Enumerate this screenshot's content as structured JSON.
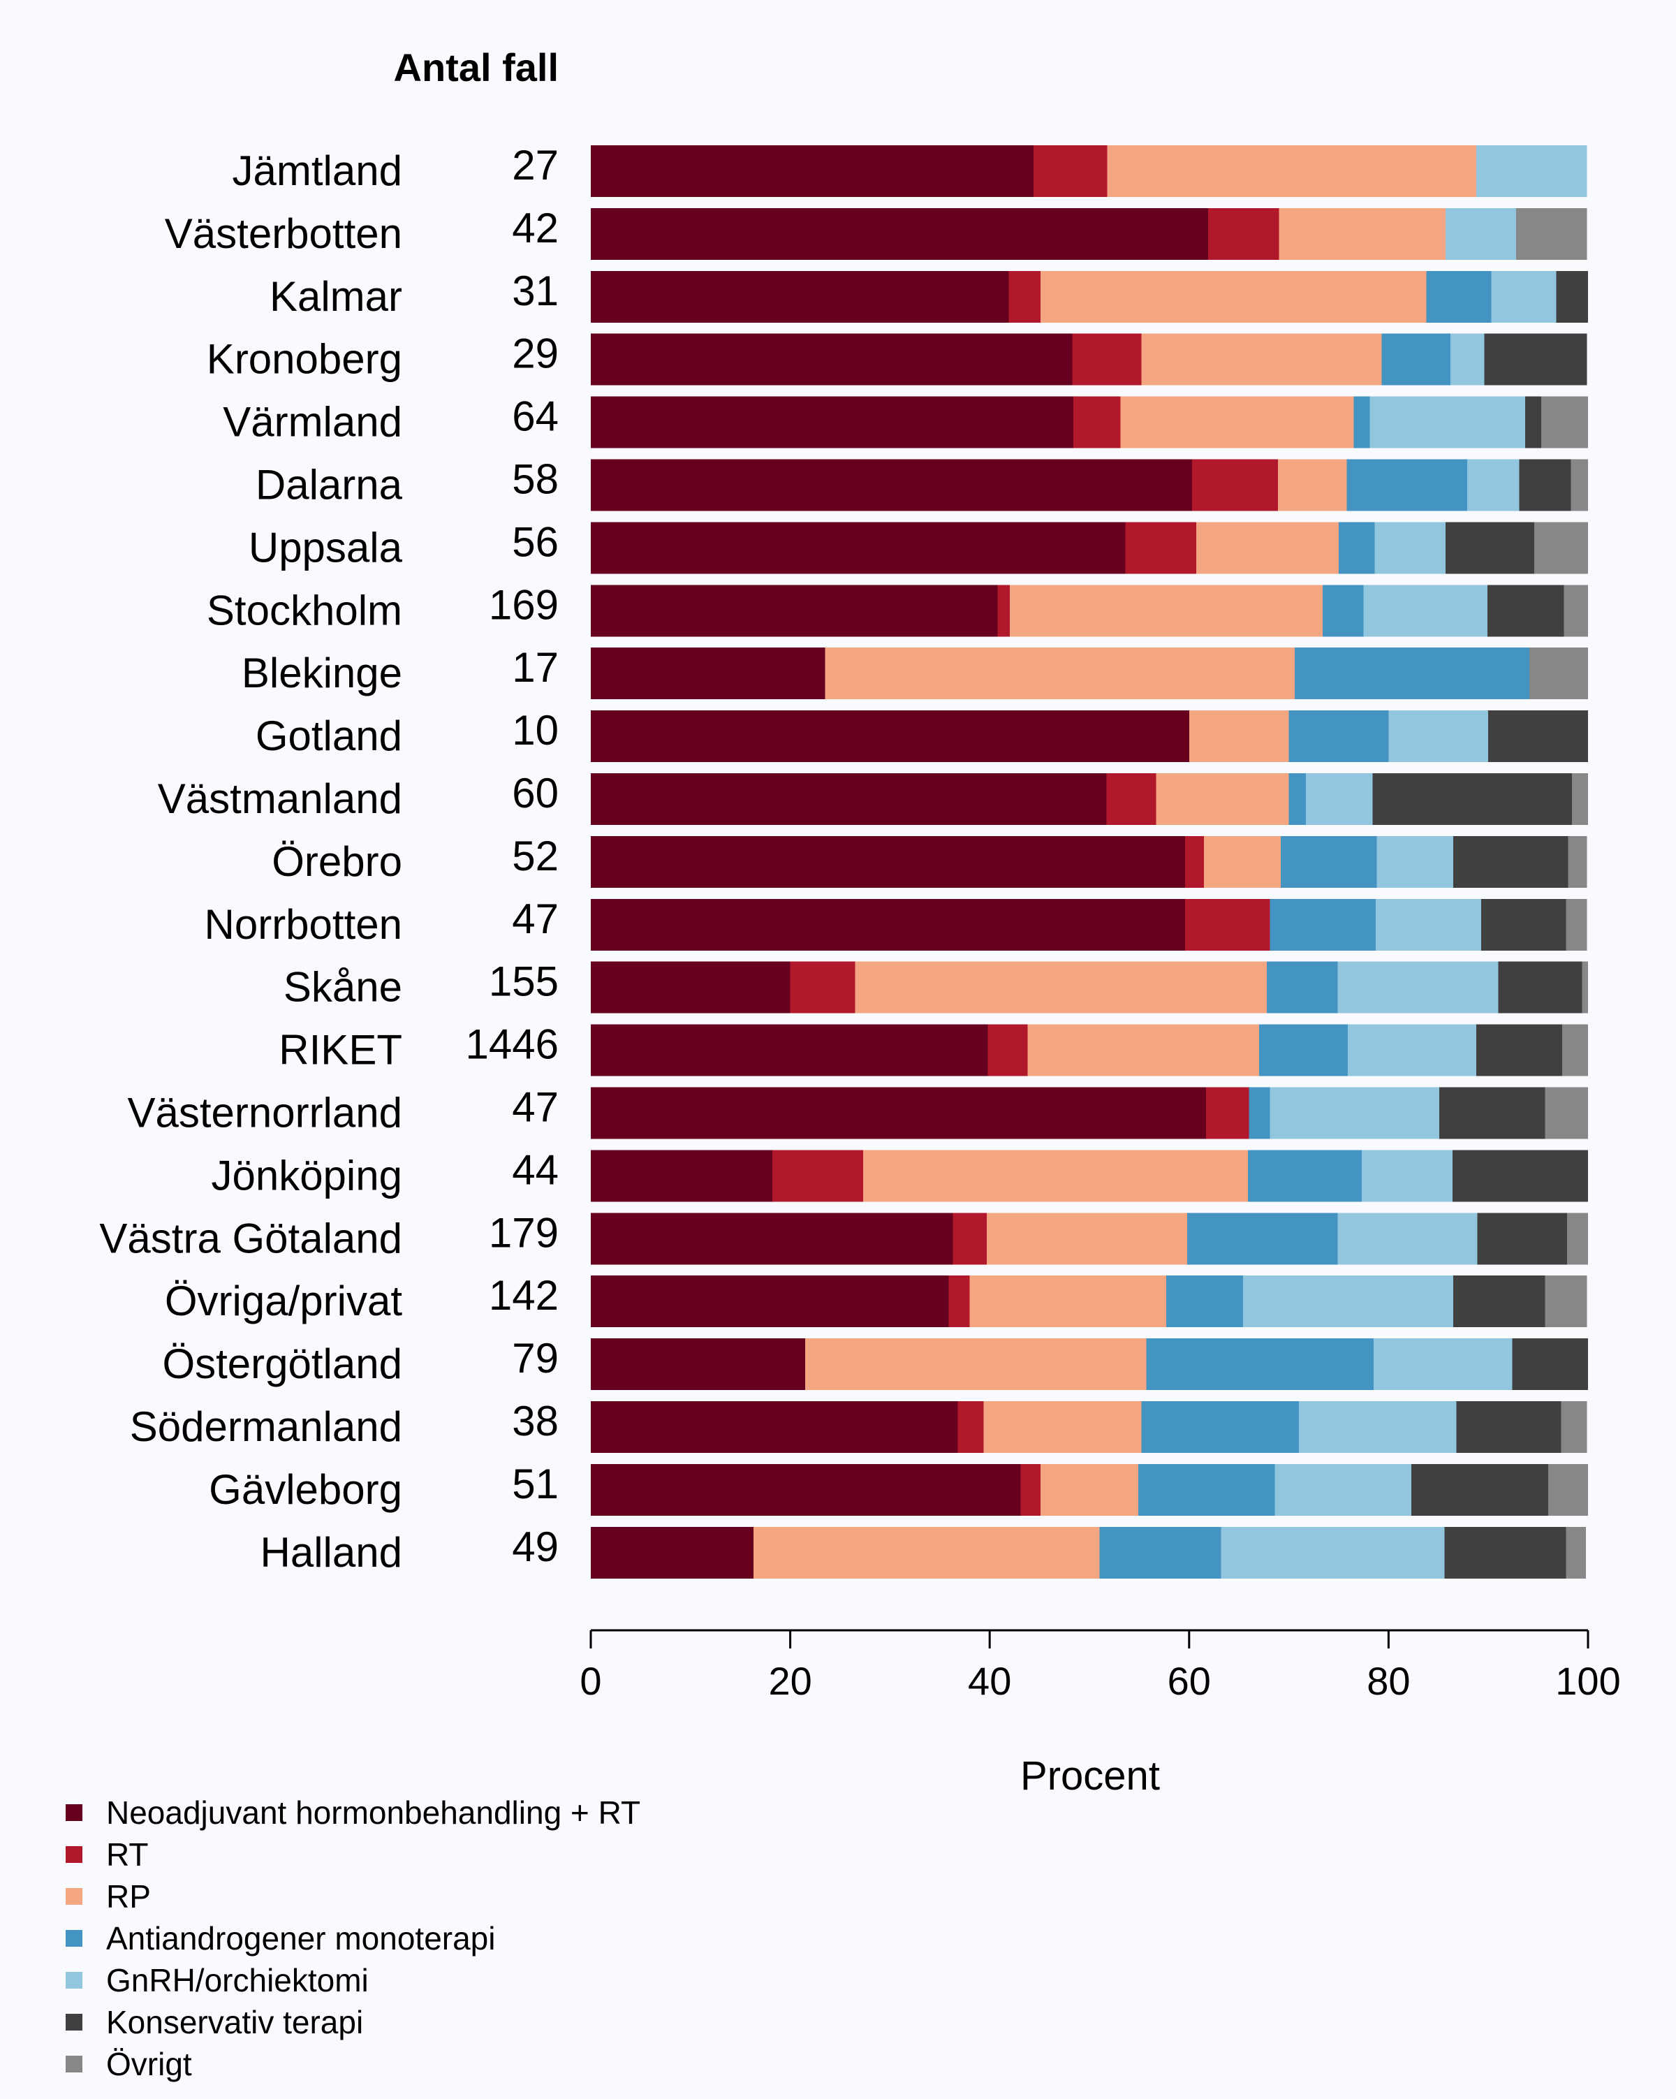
{
  "chart_data": {
    "type": "bar",
    "orientation": "horizontal",
    "stacked": true,
    "count_header": "Antal fall",
    "xlabel": "Procent",
    "xlim": [
      0,
      100
    ],
    "xticks": [
      "0",
      "20",
      "40",
      "60",
      "80",
      "100"
    ],
    "grid": false,
    "legend_position": "bottom-left",
    "categories": [
      {
        "name": "Jämtland",
        "count": "27"
      },
      {
        "name": "Västerbotten",
        "count": "42"
      },
      {
        "name": "Kalmar",
        "count": "31"
      },
      {
        "name": "Kronoberg",
        "count": "29"
      },
      {
        "name": "Värmland",
        "count": "64"
      },
      {
        "name": "Dalarna",
        "count": "58"
      },
      {
        "name": "Uppsala",
        "count": "56"
      },
      {
        "name": "Stockholm",
        "count": "169"
      },
      {
        "name": "Blekinge",
        "count": "17"
      },
      {
        "name": "Gotland",
        "count": "10"
      },
      {
        "name": "Västmanland",
        "count": "60"
      },
      {
        "name": "Örebro",
        "count": "52"
      },
      {
        "name": "Norrbotten",
        "count": "47"
      },
      {
        "name": "Skåne",
        "count": "155"
      },
      {
        "name": "RIKET",
        "count": "1446"
      },
      {
        "name": "Västernorrland",
        "count": "47"
      },
      {
        "name": "Jönköping",
        "count": "44"
      },
      {
        "name": "Västra Götaland",
        "count": "179"
      },
      {
        "name": "Övriga/privat",
        "count": "142"
      },
      {
        "name": "Östergötland",
        "count": "79"
      },
      {
        "name": "Södermanland",
        "count": "38"
      },
      {
        "name": "Gävleborg",
        "count": "51"
      },
      {
        "name": "Halland",
        "count": "49"
      }
    ],
    "series": [
      {
        "name": "Neoadjuvant hormonbehandling + RT",
        "color": "#67001f",
        "values": [
          44.4,
          61.9,
          41.9,
          48.3,
          48.4,
          60.3,
          53.6,
          40.8,
          23.5,
          60.0,
          51.7,
          59.6,
          59.6,
          20.0,
          39.8,
          61.7,
          18.2,
          36.3,
          35.9,
          21.5,
          36.8,
          43.1,
          16.3
        ]
      },
      {
        "name": "RT",
        "color": "#b2182b",
        "values": [
          7.4,
          7.1,
          3.2,
          6.9,
          4.7,
          8.6,
          7.1,
          1.2,
          0.0,
          0.0,
          5.0,
          1.9,
          8.5,
          6.5,
          4.0,
          4.3,
          9.1,
          3.4,
          2.1,
          0.0,
          2.6,
          2.0,
          0.0
        ]
      },
      {
        "name": "RP",
        "color": "#f4a582",
        "values": [
          37.0,
          16.7,
          38.7,
          24.1,
          23.4,
          6.9,
          14.3,
          31.4,
          47.1,
          10.0,
          13.3,
          7.7,
          0.0,
          41.3,
          23.2,
          0.0,
          38.6,
          20.1,
          19.7,
          34.2,
          15.8,
          9.8,
          34.7
        ]
      },
      {
        "name": "Antiandrogener monoterapi",
        "color": "#4393c3",
        "values": [
          0.0,
          0.0,
          6.5,
          6.9,
          1.6,
          12.1,
          3.6,
          4.1,
          23.5,
          10.0,
          1.7,
          9.6,
          10.6,
          7.1,
          8.9,
          2.1,
          11.4,
          15.1,
          7.7,
          22.8,
          15.8,
          13.7,
          12.2
        ]
      },
      {
        "name": "GnRH/orchiektomi",
        "color": "#92c5de",
        "values": [
          11.1,
          7.1,
          6.5,
          3.4,
          15.6,
          5.2,
          7.1,
          12.4,
          0.0,
          10.0,
          6.7,
          7.7,
          10.6,
          16.1,
          12.9,
          17.0,
          9.1,
          14.0,
          21.1,
          13.9,
          15.8,
          13.7,
          22.4
        ]
      },
      {
        "name": "Konservativ terapi",
        "color": "#404040",
        "values": [
          0.0,
          0.0,
          3.2,
          10.3,
          1.6,
          5.2,
          8.9,
          7.7,
          0.0,
          10.0,
          20.0,
          11.5,
          8.5,
          8.4,
          8.6,
          10.6,
          13.6,
          9.0,
          9.2,
          7.6,
          10.5,
          13.7,
          12.2
        ]
      },
      {
        "name": "Övrigt",
        "color": "#878787",
        "values": [
          0.0,
          7.1,
          0.0,
          0.0,
          4.7,
          1.7,
          5.4,
          2.4,
          5.9,
          0.0,
          1.7,
          1.9,
          2.1,
          0.6,
          2.6,
          4.3,
          0.0,
          2.2,
          4.2,
          0.0,
          2.6,
          4.0,
          2.0
        ]
      }
    ]
  }
}
